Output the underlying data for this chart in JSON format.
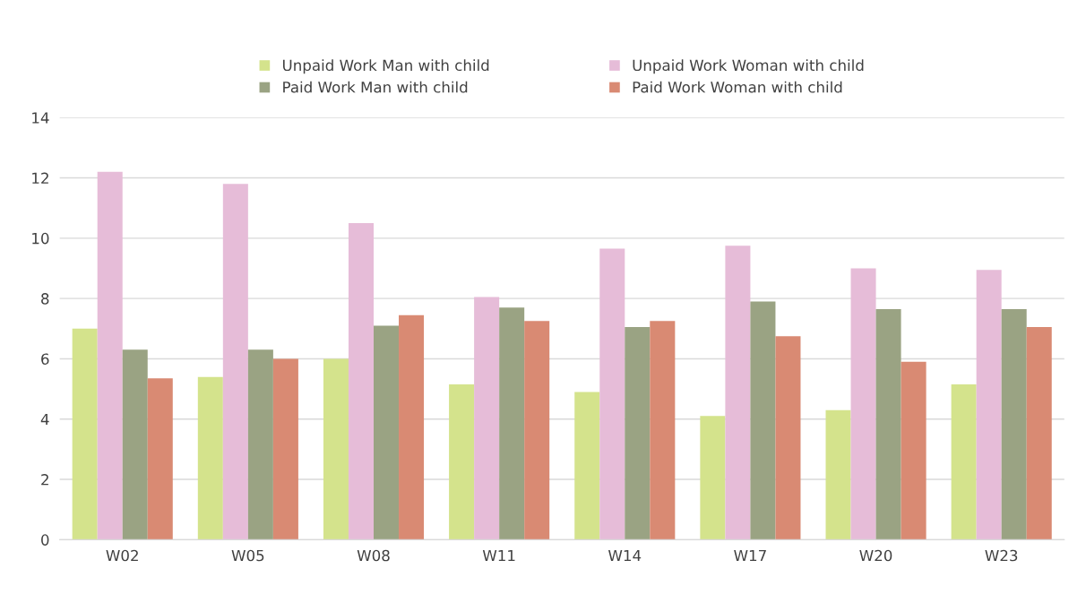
{
  "chart_data": {
    "type": "bar",
    "categories": [
      "W02",
      "W05",
      "W08",
      "W11",
      "W14",
      "W17",
      "W20",
      "W23"
    ],
    "series": [
      {
        "name": "Unpaid Work Man with child",
        "color": "#d4e38c",
        "values": [
          7.0,
          5.4,
          6.0,
          5.15,
          4.9,
          4.1,
          4.3,
          5.15
        ]
      },
      {
        "name": "Unpaid Work Woman with child",
        "color": "#e6bcd8",
        "values": [
          12.2,
          11.8,
          10.5,
          8.05,
          9.65,
          9.75,
          9.0,
          8.95
        ]
      },
      {
        "name": "Paid Work Man with child",
        "color": "#9aa383",
        "values": [
          6.3,
          6.3,
          7.1,
          7.7,
          7.05,
          7.9,
          7.65,
          7.65
        ]
      },
      {
        "name": "Paid Work Woman with child",
        "color": "#d98a73",
        "values": [
          5.35,
          6.0,
          7.45,
          7.25,
          7.25,
          6.75,
          5.9,
          7.05
        ]
      }
    ],
    "ylim": [
      0,
      14
    ],
    "yticks": [
      0,
      2,
      4,
      6,
      8,
      10,
      12,
      14
    ],
    "grid": "y",
    "legend": "top"
  }
}
